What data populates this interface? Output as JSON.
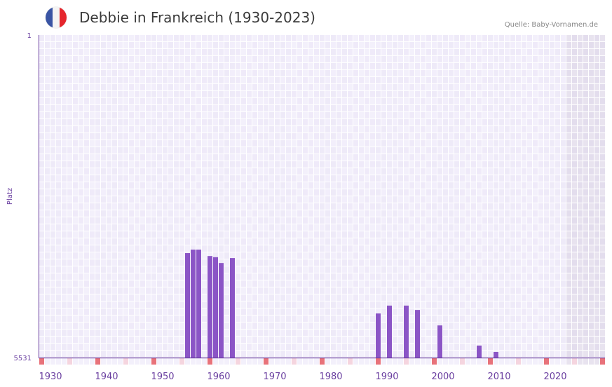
{
  "header": {
    "title": "Debbie in Frankreich (1930-2023)",
    "source": "Quelle: Baby-Vornamen.de",
    "flag_colors": [
      "#3a55a4",
      "#f4f4f4",
      "#e5262d"
    ]
  },
  "chart_data": {
    "type": "bar",
    "title": "Debbie in Frankreich (1930-2023)",
    "ylabel": "Platz",
    "xlabel": "",
    "y_reversed": true,
    "ylim": [
      1,
      5531
    ],
    "ytick_labels": [
      "1",
      "5531"
    ],
    "xlim": [
      1930,
      2030
    ],
    "xtick_labels": [
      "1930",
      "1940",
      "1950",
      "1960",
      "1970",
      "1980",
      "1990",
      "2000",
      "2010",
      "2020"
    ],
    "grid": true,
    "shaded_from_year": 2024,
    "x": [
      1956,
      1957,
      1958,
      1960,
      1961,
      1962,
      1964,
      1990,
      1992,
      1995,
      1997,
      2001,
      2008,
      2011
    ],
    "values": [
      3740,
      3680,
      3680,
      3790,
      3810,
      3910,
      3825,
      4775,
      4640,
      4640,
      4715,
      4980,
      5325,
      5435
    ],
    "colors": {
      "bar": "#8b55c6",
      "axis": "#6a3fa0",
      "decade": "#e8727a",
      "halfdecade": "#f5d5df"
    }
  }
}
